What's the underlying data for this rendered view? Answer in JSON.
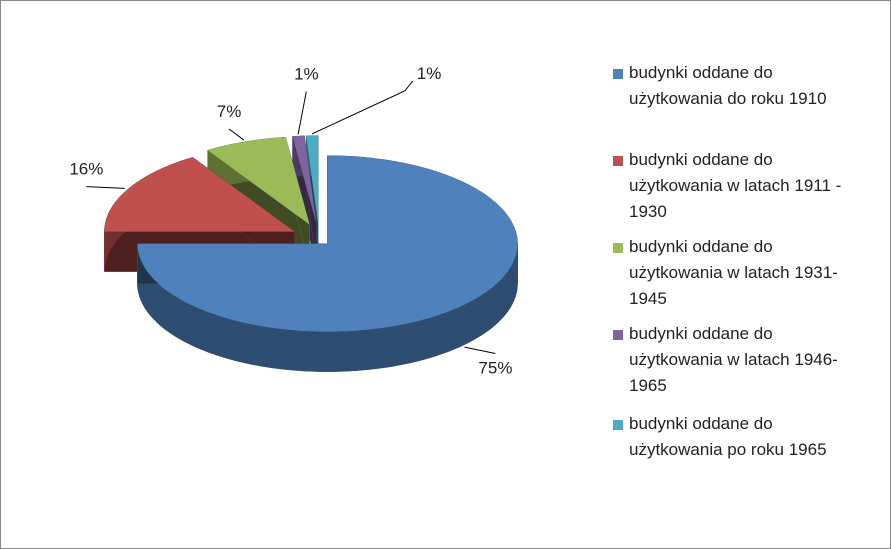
{
  "chart_data": {
    "type": "pie",
    "three_d": true,
    "categories": [
      "budynki oddane do użytkowania do roku 1910",
      "budynki oddane do użytkowania w latach 1911 - 1930",
      "budynki oddane do użytkowania w latach 1931-1945",
      "budynki oddane do użytkowania w latach 1946-1965",
      "budynki oddane do użytkowania po roku 1965"
    ],
    "values": [
      75,
      16,
      7,
      1,
      1
    ],
    "value_labels": [
      "75%",
      "16%",
      "7%",
      "1%",
      "1%"
    ],
    "colors": [
      "#4f81bd",
      "#c0504d",
      "#9bbb59",
      "#8064a2",
      "#4bacc6"
    ],
    "legend": "right"
  }
}
